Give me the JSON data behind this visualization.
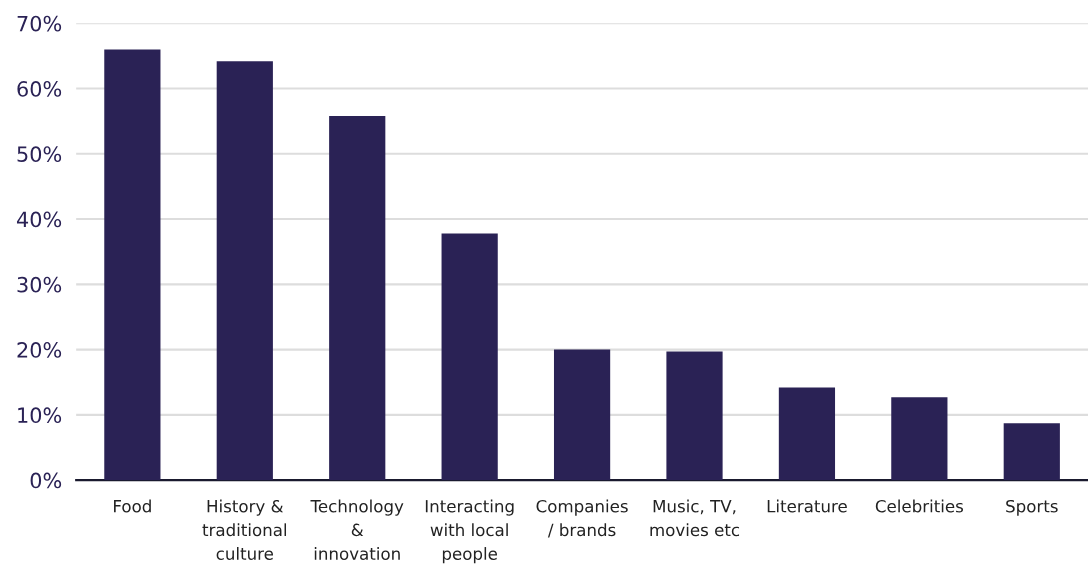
{
  "chart_data": {
    "type": "bar",
    "categories": [
      "Food",
      "History &\ntraditional\nculture",
      "Technology\n&\ninnovation",
      "Interacting\nwith local\npeople",
      "Companies\n/ brands",
      "Music, TV,\nmovies etc",
      "Literature",
      "Celebrities",
      "Sports"
    ],
    "values": [
      66,
      64.2,
      55.8,
      37.8,
      20,
      19.7,
      14.2,
      12.7,
      8.7
    ],
    "color": "#2a2255",
    "ylim": [
      0,
      70
    ],
    "yticks": [
      {
        "value": 0,
        "label": "0%"
      },
      {
        "value": 10,
        "label": "10%"
      },
      {
        "value": 20,
        "label": "20%"
      },
      {
        "value": 30,
        "label": "30%"
      },
      {
        "value": 40,
        "label": "40%"
      },
      {
        "value": 50,
        "label": "50%"
      },
      {
        "value": 60,
        "label": "60%"
      },
      {
        "value": 70,
        "label": "70%"
      }
    ],
    "grid": "y"
  }
}
